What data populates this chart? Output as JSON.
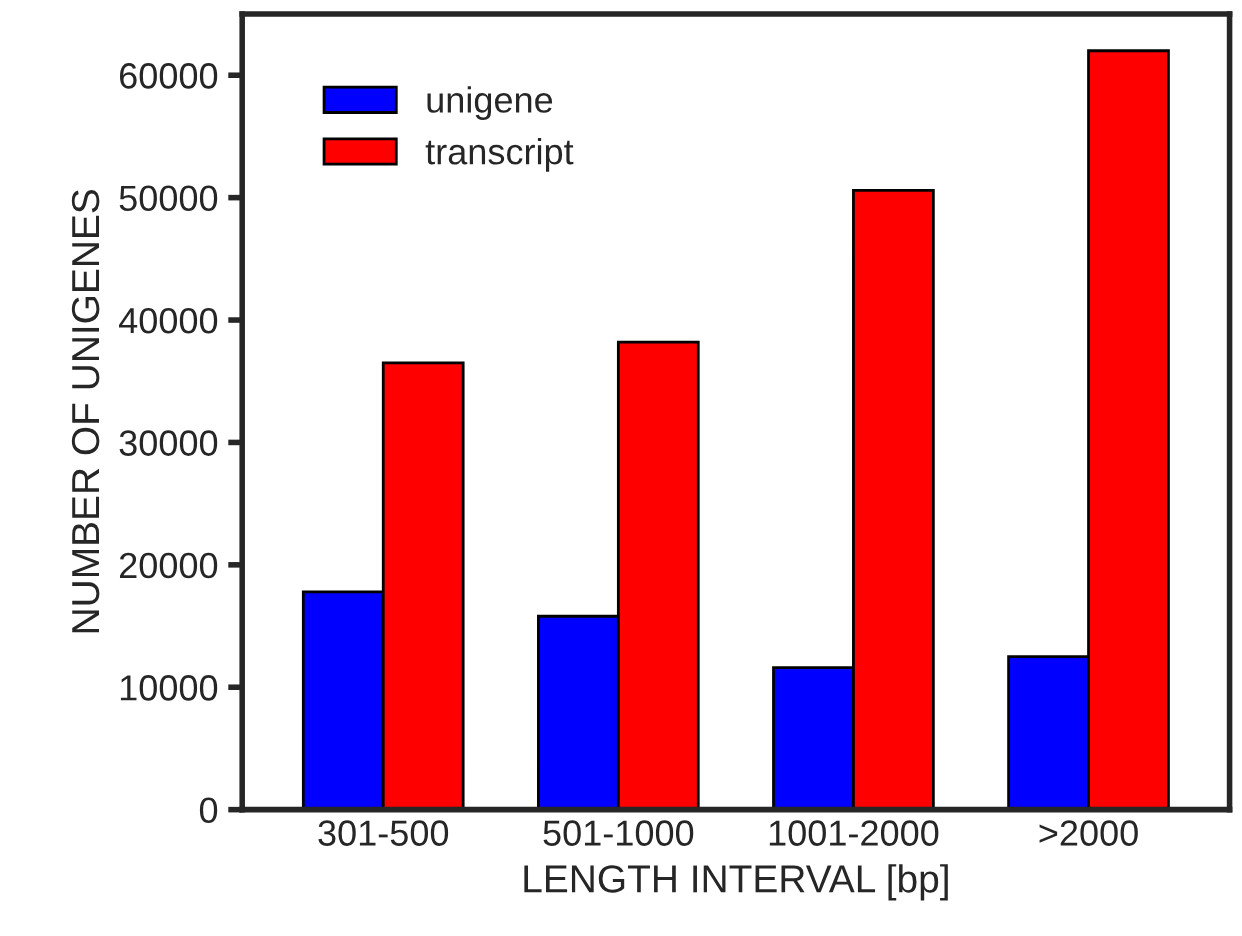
{
  "chart_data": {
    "type": "bar",
    "xlabel": "LENGTH INTERVAL [bp]",
    "ylabel": "NUMBER OF UNIGENES",
    "categories": [
      "301-500",
      "501-1000",
      "1001-2000",
      ">2000"
    ],
    "series": [
      {
        "name": "unigene",
        "color": "#0000ff",
        "values": [
          17800,
          15800,
          11600,
          12500
        ]
      },
      {
        "name": "transcript",
        "color": "#ff0000",
        "values": [
          36500,
          38200,
          50600,
          62000
        ]
      }
    ],
    "ylim": [
      0,
      65000
    ],
    "yticks": [
      0,
      10000,
      20000,
      30000,
      40000,
      50000,
      60000
    ],
    "grid": false,
    "legend": "top left"
  }
}
